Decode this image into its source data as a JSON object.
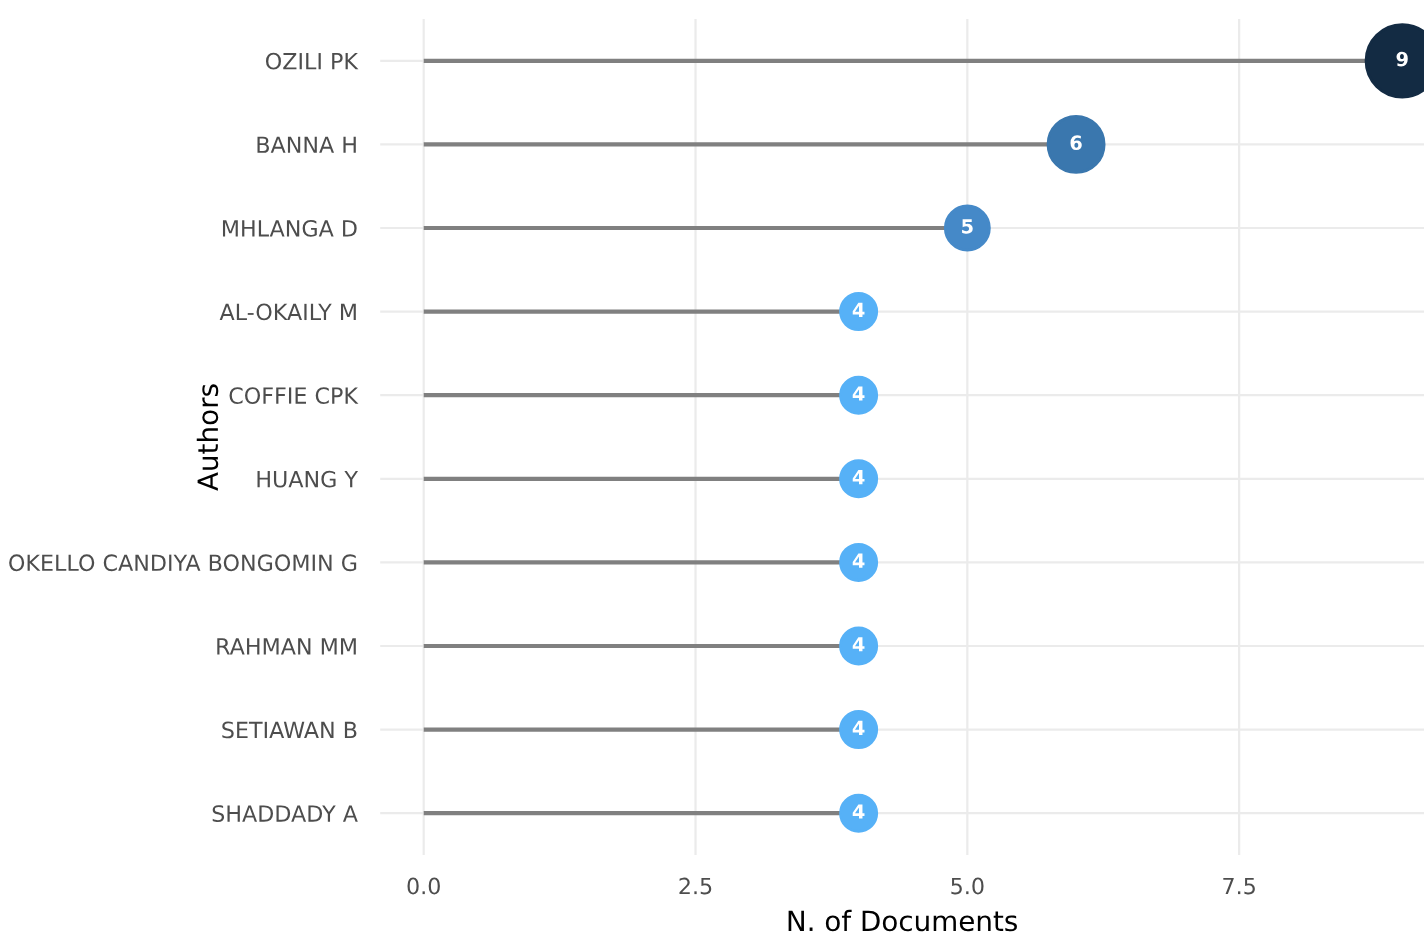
{
  "chart_data": {
    "type": "lollipop",
    "orientation": "horizontal",
    "xlabel": "N. of Documents",
    "ylabel": "Authors",
    "categories": [
      "OZILI PK",
      "BANNA H",
      "MHLANGA D",
      "AL-OKAILY M",
      "COFFIE CPK",
      "HUANG Y",
      "OKELLO CANDIYA BONGOMIN G",
      "RAHMAN MM",
      "SETIAWAN B",
      "SHADDADY A"
    ],
    "values": [
      9,
      6,
      5,
      4,
      4,
      4,
      4,
      4,
      4,
      4
    ],
    "colors": [
      "#132b43",
      "#3a77ae",
      "#4589c8",
      "#56b1f7",
      "#56b1f7",
      "#56b1f7",
      "#56b1f7",
      "#56b1f7",
      "#56b1f7",
      "#56b1f7"
    ],
    "sizes": [
      1,
      0.6,
      0.37,
      0.25,
      0.25,
      0.25,
      0.25,
      0.25,
      0.25,
      0.25
    ],
    "xlim": [
      -0.4,
      9.2
    ],
    "xticks": [
      {
        "value": 0,
        "label": "0.0"
      },
      2.5,
      {
        "value": 5,
        "label": "5.0"
      },
      7.5
    ],
    "grid": true,
    "data_labels": true
  }
}
